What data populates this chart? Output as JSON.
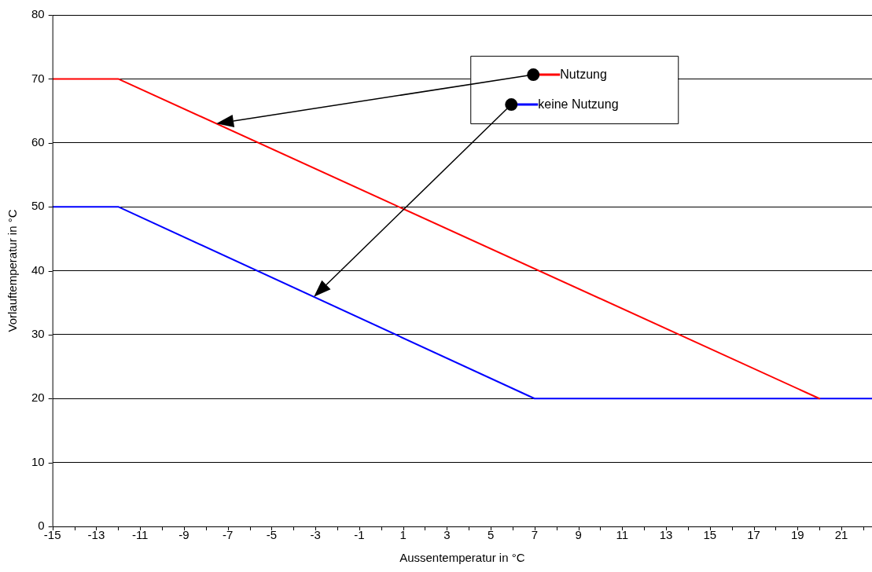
{
  "chart_data": {
    "type": "line",
    "xlabel": "Aussentemperatur in °C",
    "ylabel": "Vorlauftemperatur in °C",
    "series": [
      {
        "name": "Nutzung",
        "color": "#ff0000",
        "x": [
          -15,
          -12,
          20
        ],
        "values": [
          70,
          70,
          20
        ]
      },
      {
        "name": "keine Nutzung",
        "color": "#0000ff",
        "x": [
          -15,
          -12,
          7,
          22.4
        ],
        "values": [
          50,
          50,
          20,
          20
        ]
      }
    ],
    "xlim": [
      -15,
      22.4
    ],
    "xticks": [
      -15,
      {
        "value": -14,
        "label": null
      },
      -13,
      {
        "value": -12,
        "label": null
      },
      -11,
      {
        "value": -10,
        "label": null
      },
      -9,
      {
        "value": -8,
        "label": null
      },
      -7,
      {
        "value": -6,
        "label": null
      },
      -5,
      {
        "value": -4,
        "label": null
      },
      -3,
      {
        "value": -2,
        "label": null
      },
      -1,
      {
        "value": 0,
        "label": null
      },
      1,
      {
        "value": 2,
        "label": null
      },
      3,
      {
        "value": 4,
        "label": null
      },
      5,
      {
        "value": 6,
        "label": null
      },
      7,
      {
        "value": 8,
        "label": null
      },
      9,
      {
        "value": 10,
        "label": null
      },
      11,
      {
        "value": 12,
        "label": null
      },
      13,
      {
        "value": 14,
        "label": null
      },
      15,
      {
        "value": 16,
        "label": null
      },
      17,
      {
        "value": 18,
        "label": null
      },
      19,
      {
        "value": 20,
        "label": null
      },
      21,
      {
        "value": 22,
        "label": null
      }
    ],
    "ylim": [
      0,
      80
    ],
    "yticks": [
      0,
      10,
      20,
      30,
      40,
      50,
      60,
      70,
      80
    ],
    "grid": "y",
    "legend": "top",
    "marker": "none",
    "line_style": "solid"
  }
}
